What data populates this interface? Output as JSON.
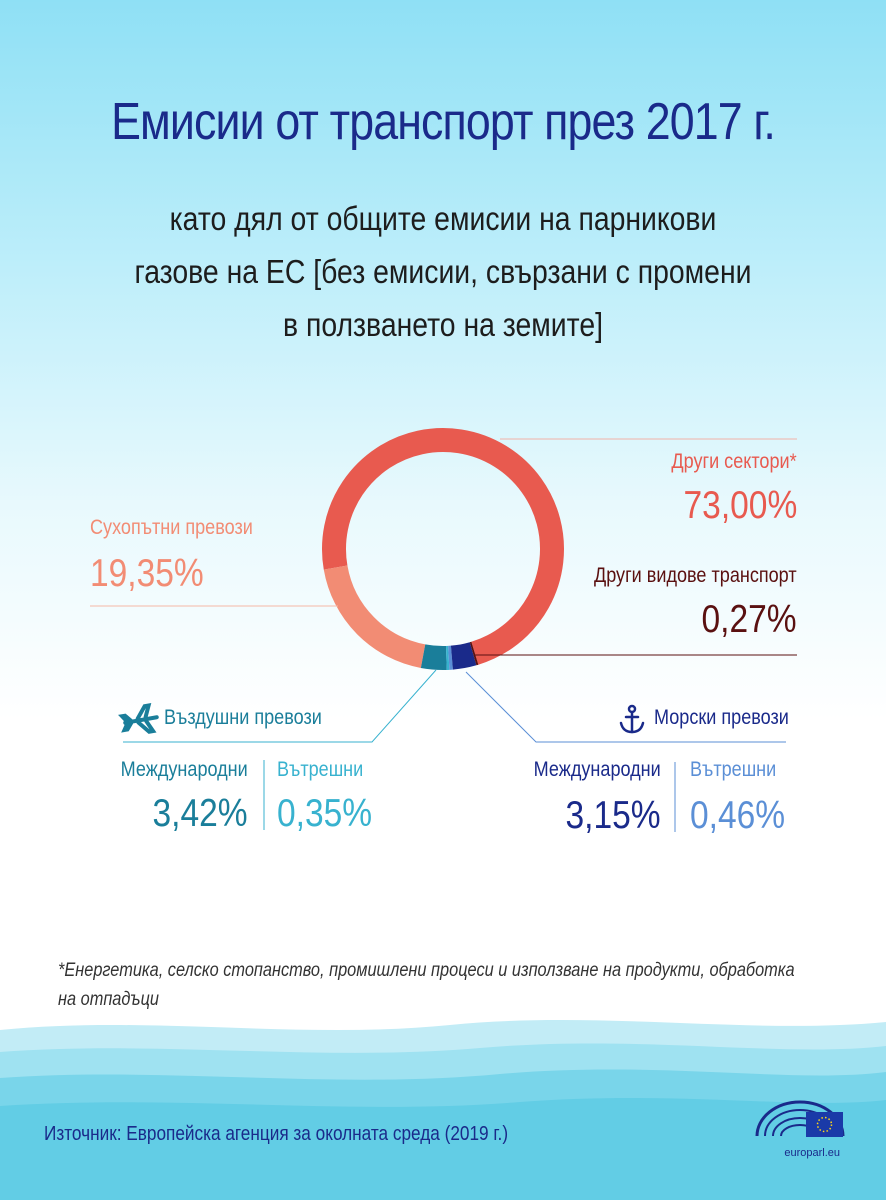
{
  "title": "Емисии от транспорт през 2017 г.",
  "subtitle": "като дял от общите емисии на парникови газове на ЕС [без емисии, свързани с промени в ползването на земите]",
  "colors": {
    "other_sectors": "#e85a4f",
    "road": "#f28c74",
    "aviation_international": "#1a7e9a",
    "aviation_domestic": "#38b2cf",
    "maritime_international": "#1a2a8a",
    "maritime_domestic": "#5b8fd6",
    "other_transport": "#5a1010"
  },
  "chart_data": {
    "type": "pie",
    "style": "donut",
    "unit": "%",
    "slices": [
      {
        "label": "Други сектори*",
        "value": 73.0,
        "display": "73,00%"
      },
      {
        "label": "Сухопътни превози",
        "value": 19.35,
        "display": "19,35%"
      },
      {
        "group": "Въздушни превози",
        "label": "Международни",
        "value": 3.42,
        "display": "3,42%"
      },
      {
        "group": "Въздушни превози",
        "label": "Вътрешни",
        "value": 0.35,
        "display": "0,35%"
      },
      {
        "group": "Морски превози",
        "label": "Вътрешни",
        "value": 0.46,
        "display": "0,46%"
      },
      {
        "group": "Морски превози",
        "label": "Международни",
        "value": 3.15,
        "display": "3,15%"
      },
      {
        "label": "Други видове транспорт",
        "value": 0.27,
        "display": "0,27%"
      }
    ]
  },
  "labels": {
    "other_sectors": {
      "name": "Други сектори*",
      "value": "73,00%"
    },
    "other_transport": {
      "name": "Други видове транспорт",
      "value": "0,27%"
    },
    "road": {
      "name": "Сухопътни превози",
      "value": "19,35%"
    },
    "aviation": {
      "heading": "Въздушни превози",
      "icon": "airplane-icon",
      "international": {
        "name": "Международни",
        "value": "3,42%"
      },
      "domestic": {
        "name": "Вътрешни",
        "value": "0,35%"
      }
    },
    "maritime": {
      "heading": "Морски превози",
      "icon": "anchor-icon",
      "international": {
        "name": "Международни",
        "value": "3,15%"
      },
      "domestic": {
        "name": "Вътрешни",
        "value": "0,46%"
      }
    }
  },
  "footnote": "*Енергетика, селско стопанство, промишлени процеси и използване на продукти, обработка на отпадъци",
  "source": "Източник: Европейска агенция за околната среда (2019 г.)",
  "branding": {
    "url": "europarl.eu",
    "logo": "european-parliament-logo"
  }
}
